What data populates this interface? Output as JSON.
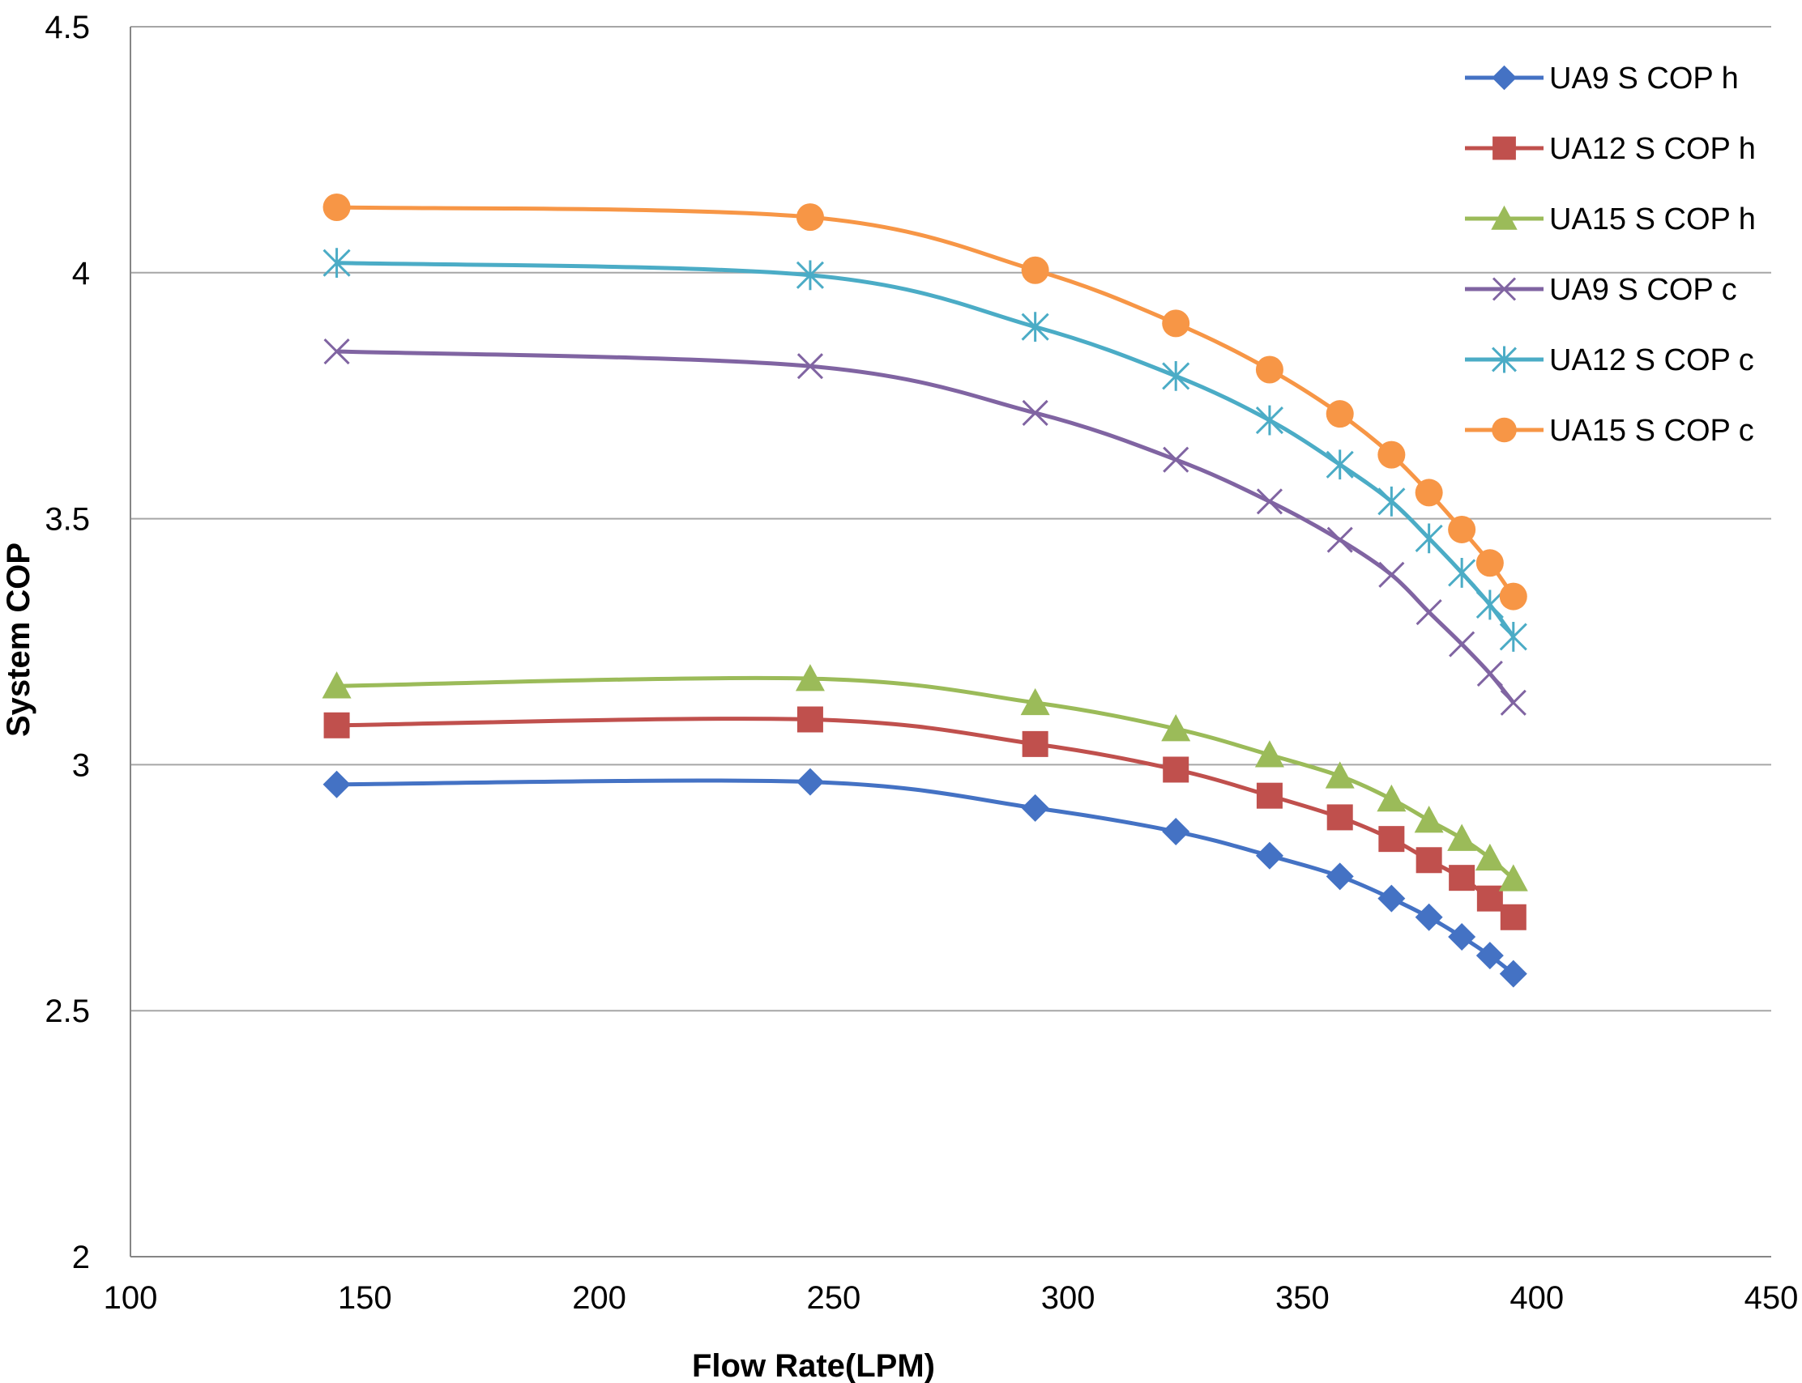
{
  "chart_data": {
    "type": "line",
    "title": "",
    "xlabel": "Flow Rate(LPM)",
    "ylabel": "System COP",
    "xlim": [
      100,
      450
    ],
    "ylim": [
      2,
      4.5
    ],
    "xticks": [
      100,
      150,
      200,
      250,
      300,
      350,
      400,
      450
    ],
    "xtick_labels": [
      "100",
      "150",
      "200",
      "250",
      "300",
      "350",
      "400",
      "450"
    ],
    "yticks": [
      2,
      2.5,
      3,
      3.5,
      4,
      4.5
    ],
    "ytick_labels": [
      "2",
      "2.5",
      "3",
      "3.5",
      "4",
      "4.5"
    ],
    "grid": "horizontal",
    "legend_position": "top-right",
    "x": [
      144,
      245,
      293,
      323,
      343,
      358,
      369,
      377,
      384,
      390,
      395
    ],
    "series": [
      {
        "name": "UA9 S COP h",
        "color": "#4472C4",
        "marker": "diamond",
        "values": [
          2.96,
          2.965,
          2.912,
          2.864,
          2.815,
          2.773,
          2.728,
          2.69,
          2.65,
          2.612,
          2.575
        ]
      },
      {
        "name": "UA12 S COP h",
        "color": "#C0504D",
        "marker": "square",
        "values": [
          3.08,
          3.092,
          3.042,
          2.99,
          2.937,
          2.893,
          2.849,
          2.806,
          2.77,
          2.728,
          2.69
        ]
      },
      {
        "name": "UA15 S COP h",
        "color": "#9BBB59",
        "marker": "triangle",
        "values": [
          3.16,
          3.175,
          3.126,
          3.073,
          3.02,
          2.977,
          2.93,
          2.887,
          2.85,
          2.81,
          2.768
        ]
      },
      {
        "name": "UA9 S COP c",
        "color": "#8064A2",
        "marker": "x",
        "values": [
          3.84,
          3.81,
          3.715,
          3.62,
          3.535,
          3.457,
          3.386,
          3.31,
          3.245,
          3.185,
          3.126
        ]
      },
      {
        "name": "UA12 S COP c",
        "color": "#4BACC6",
        "marker": "star",
        "values": [
          4.02,
          3.995,
          3.89,
          3.79,
          3.7,
          3.61,
          3.535,
          3.46,
          3.39,
          3.325,
          3.26
        ]
      },
      {
        "name": "UA15 S COP c",
        "color": "#F79646",
        "marker": "circle",
        "values": [
          4.133,
          4.113,
          4.005,
          3.897,
          3.803,
          3.713,
          3.63,
          3.553,
          3.478,
          3.41,
          3.342
        ]
      }
    ]
  }
}
